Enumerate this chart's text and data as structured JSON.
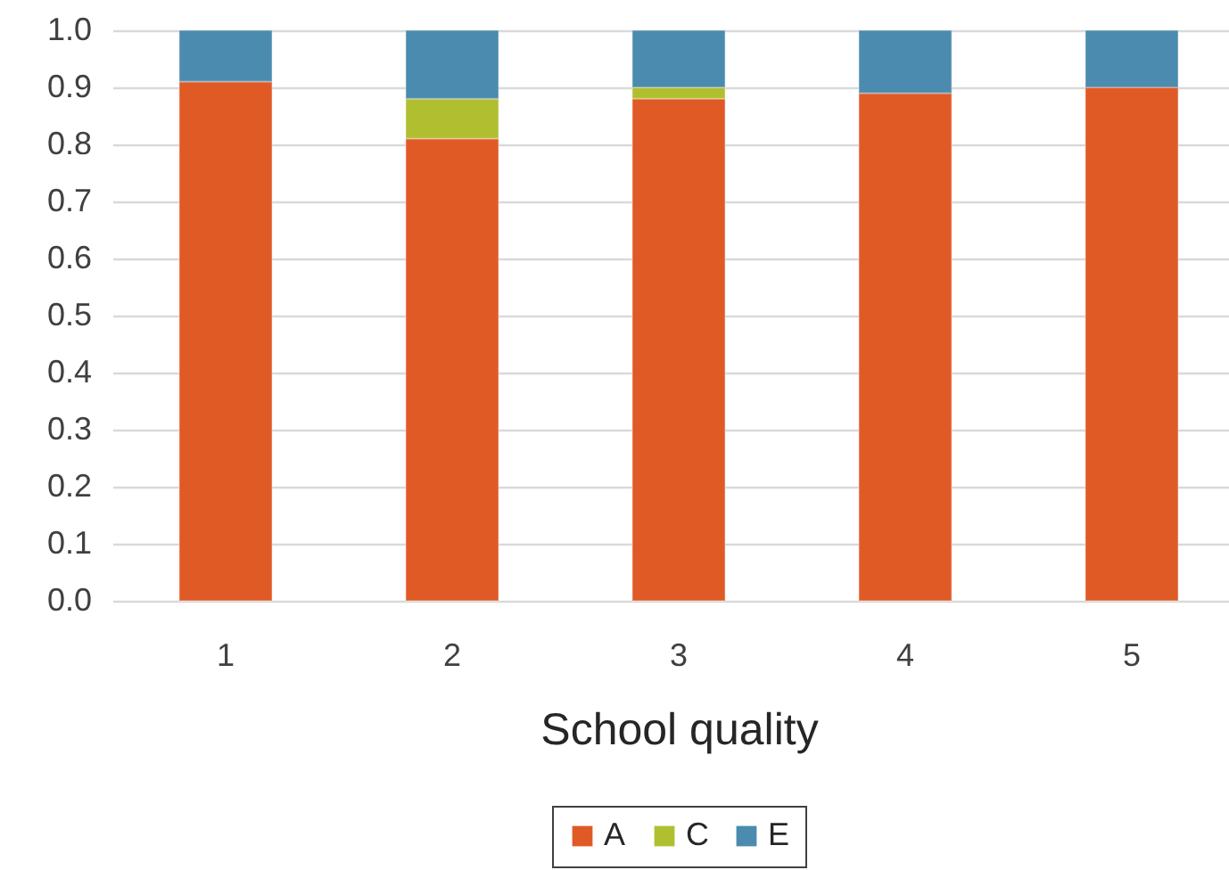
{
  "chart_data": {
    "type": "bar",
    "stacked": true,
    "xlabel": "School quality",
    "categories": [
      "1",
      "2",
      "3",
      "4",
      "5"
    ],
    "series": [
      {
        "name": "A",
        "color": "#e05a26",
        "values": [
          0.91,
          0.81,
          0.88,
          0.89,
          0.9
        ]
      },
      {
        "name": "C",
        "color": "#b0bf2f",
        "values": [
          null,
          0.07,
          0.02,
          null,
          null
        ]
      },
      {
        "name": "E",
        "color": "#4b8baf",
        "values": [
          0.09,
          0.12,
          0.1,
          0.11,
          0.1
        ]
      }
    ],
    "ylim": [
      0,
      1
    ],
    "yticks": [
      {
        "value": 0,
        "label": "0.0"
      },
      0.1,
      0.2,
      0.3,
      0.4,
      0.5,
      0.6,
      0.7,
      0.8,
      0.9,
      {
        "value": 1,
        "label": "1.0"
      }
    ],
    "grid": "y",
    "legend": "bottom"
  }
}
